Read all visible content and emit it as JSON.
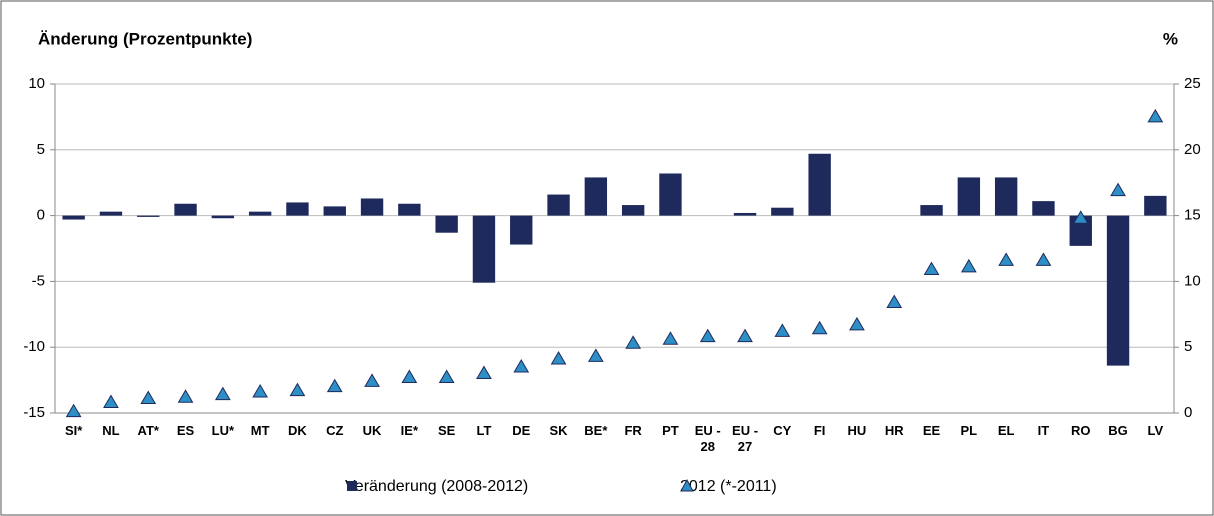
{
  "chart_data": {
    "type": "bar",
    "title": "Änderung (Prozentpunkte)",
    "y2_label": "%",
    "categories": [
      "SI*",
      "NL",
      "AT*",
      "ES",
      "LU*",
      "MT",
      "DK",
      "CZ",
      "UK",
      "IE*",
      "SE",
      "LT",
      "DE",
      "SK",
      "BE*",
      "FR",
      "PT",
      "EU - 28",
      "EU - 27",
      "CY",
      "FI",
      "HU",
      "HR",
      "EE",
      "PL",
      "EL",
      "IT",
      "RO",
      "BG",
      "LV"
    ],
    "series": [
      {
        "name": "Veränderung (2008-2012)",
        "color": "#1f2a5c",
        "marker": "bar",
        "values": [
          -0.3,
          0.3,
          -0.1,
          0.9,
          -0.2,
          0.3,
          1.0,
          0.7,
          1.3,
          0.9,
          -1.3,
          -5.1,
          -2.2,
          1.6,
          2.9,
          0.8,
          3.2,
          null,
          0.2,
          0.6,
          4.7,
          0,
          null,
          0.8,
          2.9,
          2.9,
          1.1,
          -2.3,
          -11.4,
          1.5
        ]
      },
      {
        "name": "2012 (*-2011)",
        "color": "#2e8fc7",
        "marker": "triangle",
        "axis": "y2",
        "values": [
          0.1,
          0.8,
          1.1,
          1.2,
          1.4,
          1.6,
          1.7,
          2.0,
          2.4,
          2.7,
          2.7,
          3.0,
          3.5,
          4.1,
          4.3,
          5.3,
          5.6,
          5.8,
          5.8,
          6.2,
          6.4,
          6.7,
          8.4,
          10.9,
          11.1,
          11.6,
          11.6,
          14.8,
          16.9,
          22.5
        ]
      }
    ],
    "ylim": [
      -15,
      10
    ],
    "yticks": [
      -15,
      -10,
      -5,
      0,
      5,
      10
    ],
    "y2lim": [
      0,
      25
    ],
    "y2ticks": [
      0,
      5,
      10,
      15,
      20,
      25
    ],
    "grid": true
  }
}
